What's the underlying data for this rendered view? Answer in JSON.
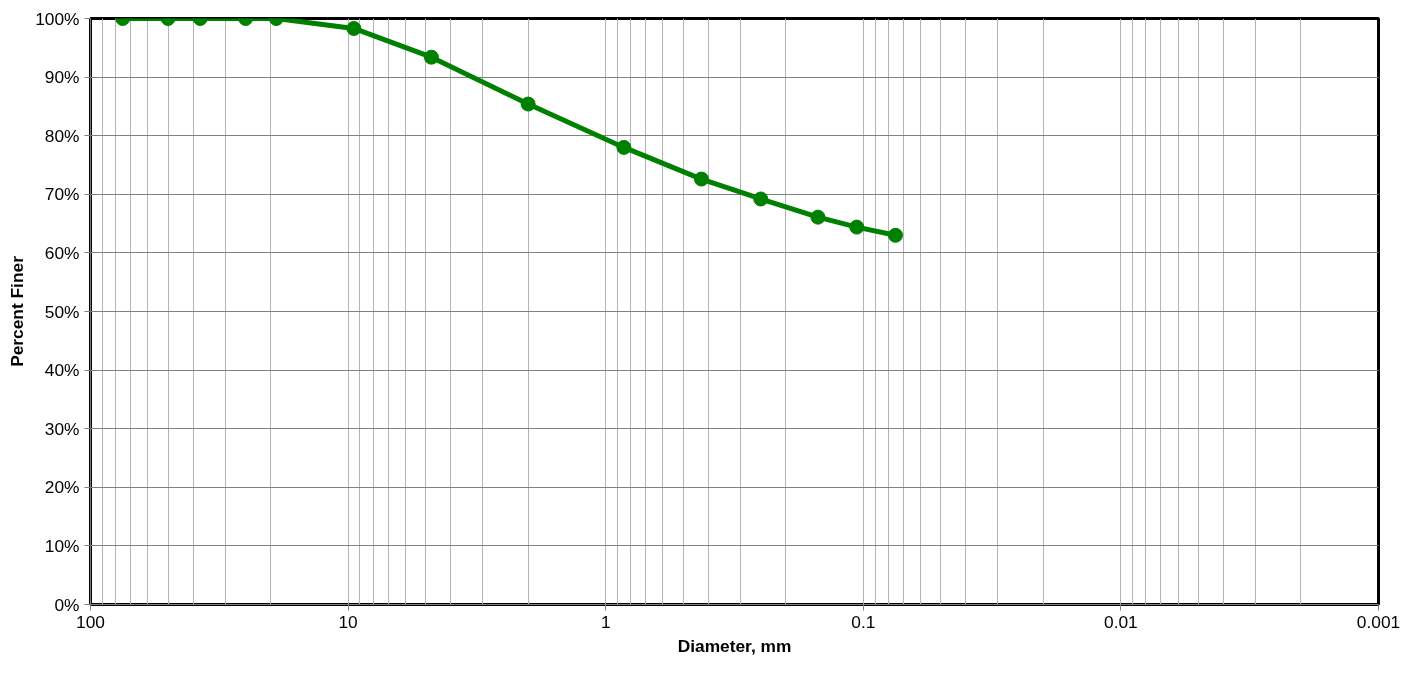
{
  "chart_data": {
    "type": "line",
    "xlabel": "Diameter, mm",
    "ylabel": "Percent Finer",
    "x": [
      75,
      50,
      37.5,
      25,
      19,
      9.5,
      4.75,
      2,
      0.85,
      0.425,
      0.25,
      0.15,
      0.106,
      0.075
    ],
    "series": [
      {
        "color": "#008000",
        "values": [
          100,
          100,
          100,
          100,
          100,
          98.3,
          93.4,
          85.4,
          78.0,
          72.6,
          69.2,
          66.1,
          64.4,
          63.0
        ]
      }
    ],
    "log": "x",
    "xlim": [
      100,
      0.001
    ],
    "xticks": [
      {
        "value": 100,
        "label": "100"
      },
      {
        "value": 10,
        "label": "10"
      },
      {
        "value": 1,
        "label": "1"
      },
      {
        "value": 0.1,
        "label": "0.1"
      },
      {
        "value": 0.01,
        "label": "0.01"
      },
      {
        "value": 0.001,
        "label": "0.001"
      }
    ],
    "ylim": [
      0,
      100
    ],
    "yticks": [
      {
        "value": 0,
        "label": "0%"
      },
      {
        "value": 10,
        "label": "10%"
      },
      {
        "value": 20,
        "label": "20%"
      },
      {
        "value": 30,
        "label": "30%"
      },
      {
        "value": 40,
        "label": "40%"
      },
      {
        "value": 50,
        "label": "50%"
      },
      {
        "value": 60,
        "label": "60%"
      },
      {
        "value": 70,
        "label": "70%"
      },
      {
        "value": 80,
        "label": "80%"
      },
      {
        "value": 90,
        "label": "90%"
      },
      {
        "value": 100,
        "label": "100%"
      }
    ],
    "grid": true,
    "marker": "circle",
    "line_style": "solid"
  }
}
